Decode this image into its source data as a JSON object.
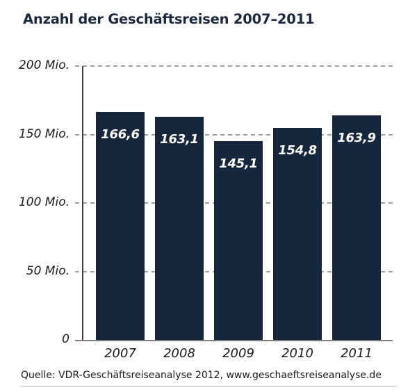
{
  "title": "Anzahl der Geschäftsreisen 2007–2011",
  "source": "Quelle: VDR-Geschäftsreiseanalyse 2012, www.geschaeftsreiseanalyse.de",
  "colors": {
    "bar": "#16263c",
    "title": "#1b2940",
    "gridline": "#9e9e9e",
    "y_axis": "#3f3f3f",
    "x_axis": "#7f7f7f",
    "value_label": "#ffffff",
    "tick_text": "#1a1a1a"
  },
  "chart_data": {
    "type": "bar",
    "title": "Anzahl der Geschäftsreisen 2007–2011",
    "categories": [
      "2007",
      "2008",
      "2009",
      "2010",
      "2011"
    ],
    "values": [
      166.6,
      163.1,
      145.1,
      154.8,
      163.9
    ],
    "value_labels": [
      "166,6",
      "163,1",
      "145,1",
      "154,8",
      "163,9"
    ],
    "unit": "Mio.",
    "xlabel": "",
    "ylabel": "",
    "ylim": [
      0,
      200
    ],
    "yticks": [
      {
        "value": 200,
        "label": "200 Mio."
      },
      {
        "value": 150,
        "label": "150 Mio."
      },
      {
        "value": 100,
        "label": "100 Mio."
      },
      {
        "value": 50,
        "label": "50 Mio."
      },
      {
        "value": 0,
        "label": "0"
      }
    ],
    "grid": "horizontal-dashed",
    "legend": "none"
  }
}
